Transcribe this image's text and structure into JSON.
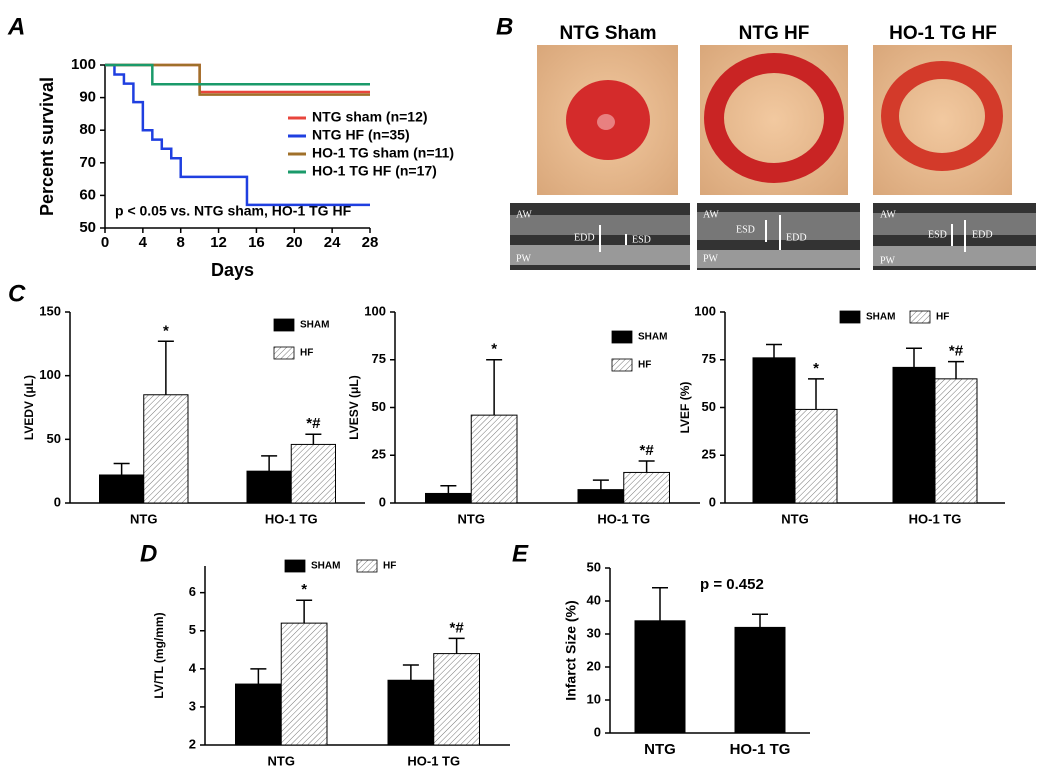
{
  "chart_data": [
    {
      "type": "line",
      "panel": "A",
      "xlabel": "Days",
      "ylabel": "Percent survival",
      "annotation": "p < 0.05 vs. NTG sham, HO-1 TG HF",
      "xlim": [
        0,
        28
      ],
      "ylim": [
        50,
        100
      ],
      "xticks": [
        0,
        4,
        8,
        12,
        16,
        20,
        24,
        28
      ],
      "yticks": [
        50,
        60,
        70,
        80,
        90,
        100
      ],
      "series": [
        {
          "name": "NTG sham (n=12)",
          "color": "#e8453c",
          "x": [
            0,
            10,
            10,
            28
          ],
          "values": [
            100,
            100,
            91.7,
            91.7
          ]
        },
        {
          "name": "NTG HF (n=35)",
          "color": "#1f3fe0",
          "x": [
            0,
            1,
            1,
            2,
            2,
            3,
            3,
            4,
            4,
            5,
            5,
            6,
            6,
            7,
            7,
            8,
            8,
            15,
            15,
            28
          ],
          "values": [
            100,
            100,
            97.1,
            97.1,
            94.3,
            94.3,
            88.6,
            88.6,
            80,
            80,
            77.1,
            77.1,
            74.3,
            74.3,
            71.4,
            71.4,
            65.7,
            65.7,
            57.1,
            57.1
          ]
        },
        {
          "name": "HO-1 TG sham (n=11)",
          "color": "#a0702a",
          "x": [
            0,
            10,
            10,
            28
          ],
          "values": [
            100,
            100,
            90.9,
            90.9
          ]
        },
        {
          "name": "HO-1 TG HF (n=17)",
          "color": "#1a9a6a",
          "x": [
            0,
            5,
            5,
            28
          ],
          "values": [
            100,
            100,
            94.1,
            94.1
          ]
        }
      ]
    },
    {
      "type": "bar",
      "panel": "C",
      "ylabel": "LVEDV (μL)",
      "categories": [
        "NTG",
        "HO-1 TG"
      ],
      "ylim": [
        0,
        150
      ],
      "yticks": [
        0,
        50,
        100,
        150
      ],
      "series": [
        {
          "name": "SHAM",
          "color": "#000000",
          "values": [
            22,
            25
          ],
          "errors": [
            9,
            12
          ]
        },
        {
          "name": "HF",
          "color": "#ffffff",
          "pattern": "hatch",
          "values": [
            85,
            46
          ],
          "errors": [
            42,
            8
          ],
          "markers": [
            "*",
            "*#"
          ]
        }
      ]
    },
    {
      "type": "bar",
      "ylabel": "LVESV (μL)",
      "categories": [
        "NTG",
        "HO-1 TG"
      ],
      "ylim": [
        0,
        100
      ],
      "yticks": [
        0,
        25,
        50,
        75,
        100
      ],
      "series": [
        {
          "name": "SHAM",
          "color": "#000000",
          "values": [
            5,
            7
          ],
          "errors": [
            4,
            5
          ]
        },
        {
          "name": "HF",
          "color": "#ffffff",
          "pattern": "hatch",
          "values": [
            46,
            16
          ],
          "errors": [
            29,
            6
          ],
          "markers": [
            "*",
            "*#"
          ]
        }
      ]
    },
    {
      "type": "bar",
      "ylabel": "LVEF (%)",
      "categories": [
        "NTG",
        "HO-1 TG"
      ],
      "ylim": [
        0,
        100
      ],
      "yticks": [
        0,
        25,
        50,
        75,
        100
      ],
      "series": [
        {
          "name": "SHAM",
          "color": "#000000",
          "values": [
            76,
            71
          ],
          "errors": [
            7,
            10
          ]
        },
        {
          "name": "HF",
          "color": "#ffffff",
          "pattern": "hatch",
          "values": [
            49,
            65
          ],
          "errors": [
            16,
            9
          ],
          "markers": [
            "*",
            "*#"
          ]
        }
      ]
    },
    {
      "type": "bar",
      "panel": "D",
      "ylabel": "LV/TL (mg/mm)",
      "categories": [
        "NTG",
        "HO-1 TG"
      ],
      "ylim": [
        2,
        6.7
      ],
      "yticks": [
        2,
        3,
        4,
        5,
        6
      ],
      "series": [
        {
          "name": "SHAM",
          "color": "#000000",
          "values": [
            3.6,
            3.7
          ],
          "errors": [
            0.4,
            0.4
          ]
        },
        {
          "name": "HF",
          "color": "#ffffff",
          "pattern": "hatch",
          "values": [
            5.2,
            4.4
          ],
          "errors": [
            0.6,
            0.4
          ],
          "markers": [
            "*",
            "*#"
          ]
        }
      ]
    },
    {
      "type": "bar",
      "panel": "E",
      "ylabel": "Infarct Size (%)",
      "annotation": "p = 0.452",
      "categories": [
        "NTG",
        "HO-1 TG"
      ],
      "ylim": [
        0,
        50
      ],
      "yticks": [
        0,
        10,
        20,
        30,
        40,
        50
      ],
      "series": [
        {
          "color": "#000000",
          "values": [
            34,
            32
          ],
          "errors": [
            10,
            4
          ]
        }
      ]
    }
  ],
  "images": {
    "panel": "B",
    "labels": [
      "NTG Sham",
      "NTG HF",
      "HO-1 TG HF"
    ],
    "echo_wall_top": "AW",
    "echo_wall_bottom": "PW",
    "edd": "EDD",
    "esd": "ESD"
  }
}
